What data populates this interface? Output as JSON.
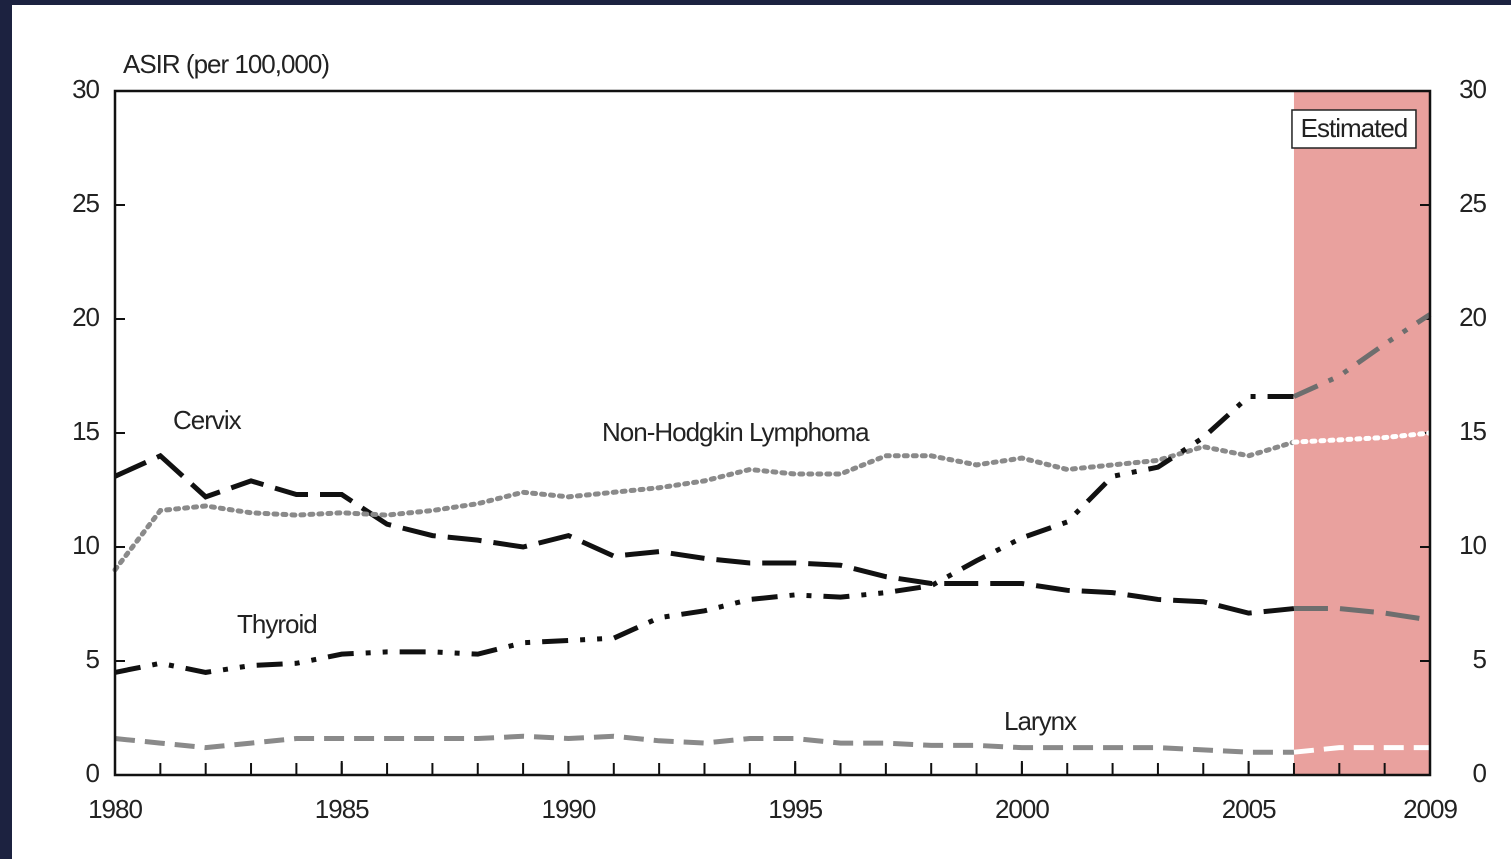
{
  "chart_data": {
    "type": "line",
    "y_label": "ASIR (per 100,000)",
    "x": [
      1980,
      1981,
      1982,
      1983,
      1984,
      1985,
      1986,
      1987,
      1988,
      1989,
      1990,
      1991,
      1992,
      1993,
      1994,
      1995,
      1996,
      1997,
      1998,
      1999,
      2000,
      2001,
      2002,
      2003,
      2004,
      2005,
      2006,
      2007,
      2008,
      2009
    ],
    "xlim": [
      1980,
      2009
    ],
    "xticks": [
      1980,
      1985,
      1990,
      1995,
      2000,
      2005,
      2009
    ],
    "ylim": [
      0,
      30
    ],
    "yticks": [
      0,
      5,
      10,
      15,
      20,
      25,
      30
    ],
    "y2lim": [
      0,
      30
    ],
    "y2ticks": [
      0,
      5,
      10,
      15,
      20,
      25,
      30
    ],
    "estimated": {
      "label": "Estimated",
      "x": [
        2006,
        2009
      ],
      "color": "#e9a19e"
    },
    "series": [
      {
        "name": "Cervix",
        "color": "#111111",
        "estimated_color": "#6e6e6e",
        "dash": "long",
        "values": [
          13.1,
          14.0,
          12.2,
          12.9,
          12.3,
          12.3,
          11.0,
          10.5,
          10.3,
          10.0,
          10.5,
          9.6,
          9.8,
          9.5,
          9.3,
          9.3,
          9.2,
          8.7,
          8.4,
          8.4,
          8.4,
          8.1,
          8.0,
          7.7,
          7.6,
          7.1,
          7.3,
          7.3,
          7.1,
          6.8
        ]
      },
      {
        "name": "Non-Hodgkin Lymphoma",
        "color": "#8a8a8a",
        "estimated_color": "#ffffff",
        "dash": "dot",
        "values": [
          9.0,
          11.6,
          11.8,
          11.5,
          11.4,
          11.5,
          11.4,
          11.6,
          11.9,
          12.4,
          12.2,
          12.4,
          12.6,
          12.9,
          13.4,
          13.2,
          13.2,
          14.0,
          14.0,
          13.6,
          13.9,
          13.4,
          13.6,
          13.8,
          14.4,
          14.0,
          14.6,
          14.7,
          14.8,
          15.0
        ]
      },
      {
        "name": "Thyroid",
        "color": "#111111",
        "estimated_color": "#6e6e6e",
        "dash": "dashdotdot",
        "values": [
          4.5,
          4.9,
          4.5,
          4.8,
          4.9,
          5.3,
          5.4,
          5.4,
          5.3,
          5.8,
          5.9,
          6.0,
          6.9,
          7.2,
          7.7,
          7.9,
          7.8,
          8.0,
          8.3,
          9.4,
          10.4,
          11.1,
          13.1,
          13.5,
          14.8,
          16.6,
          16.6,
          17.5,
          18.9,
          20.2
        ]
      },
      {
        "name": "Larynx",
        "color": "#8a8a8a",
        "estimated_color": "#ffffff",
        "dash": "dash",
        "values": [
          1.6,
          1.4,
          1.2,
          1.4,
          1.6,
          1.6,
          1.6,
          1.6,
          1.6,
          1.7,
          1.6,
          1.7,
          1.5,
          1.4,
          1.6,
          1.6,
          1.4,
          1.4,
          1.3,
          1.3,
          1.2,
          1.2,
          1.2,
          1.2,
          1.1,
          1.0,
          1.0,
          1.2,
          1.2,
          1.2
        ]
      }
    ]
  }
}
